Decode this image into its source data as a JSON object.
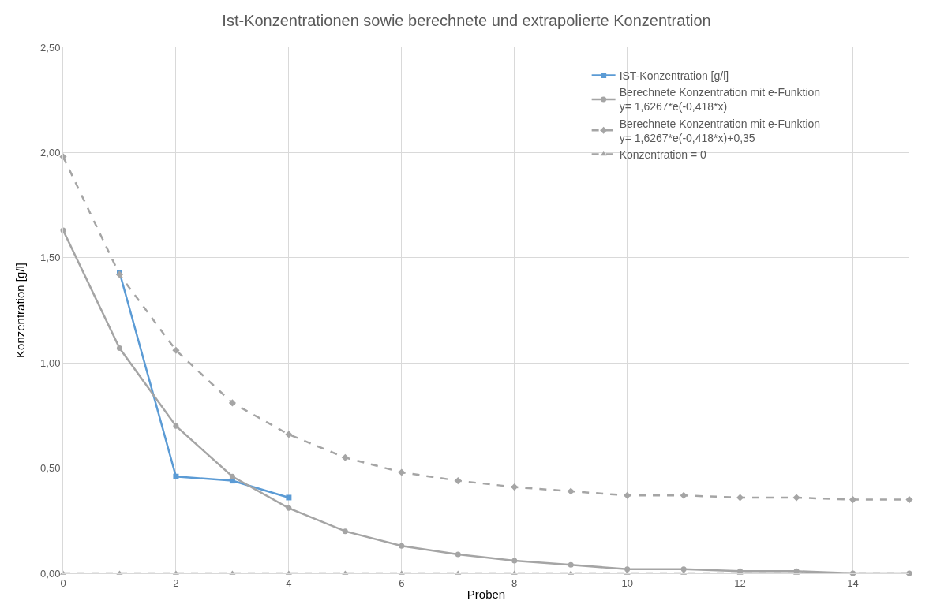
{
  "chart_data": {
    "type": "line",
    "title": "Ist-Konzentrationen sowie berechnete und extrapolierte Konzentration",
    "xlabel": "Proben",
    "ylabel": "Konzentration [g/l]",
    "x": [
      0,
      1,
      2,
      3,
      4,
      5,
      6,
      7,
      8,
      9,
      10,
      11,
      12,
      13,
      14,
      15
    ],
    "series": [
      {
        "name": "IST-Konzentration [g/l]",
        "color": "#5b9bd5",
        "marker": "square",
        "line_style": "solid",
        "x": [
          1,
          2,
          3,
          4
        ],
        "values": [
          1.43,
          0.46,
          0.44,
          0.36
        ]
      },
      {
        "name": "Berechnete Konzentration mit e-Funktion\ny= 1,6267*e(-0,418*x)",
        "color": "#a5a5a5",
        "marker": "circle",
        "line_style": "solid",
        "values": [
          1.63,
          1.07,
          0.7,
          0.46,
          0.31,
          0.2,
          0.13,
          0.09,
          0.06,
          0.04,
          0.02,
          0.02,
          0.01,
          0.01,
          0.0,
          0.0
        ]
      },
      {
        "name": "Berechnete Konzentration mit e-Funktion\ny= 1,6267*e(-0,418*x)+0,35",
        "color": "#a5a5a5",
        "marker": "diamond",
        "line_style": "dashed",
        "values": [
          1.98,
          1.42,
          1.06,
          0.81,
          0.66,
          0.55,
          0.48,
          0.44,
          0.41,
          0.39,
          0.37,
          0.37,
          0.36,
          0.36,
          0.35,
          0.35
        ]
      },
      {
        "name": "Konzentration = 0",
        "color": "#a5a5a5",
        "marker": "triangle",
        "line_style": "dashed",
        "values": [
          0,
          0,
          0,
          0,
          0,
          0,
          0,
          0,
          0,
          0,
          0,
          0,
          0,
          0,
          0,
          0
        ]
      }
    ],
    "xlim": [
      0,
      15
    ],
    "xticks": [
      0,
      2,
      4,
      6,
      8,
      10,
      12,
      14
    ],
    "ylim": [
      0,
      2.5
    ],
    "yticks": [
      {
        "value": 0,
        "label": "0,00"
      },
      {
        "value": 0.5,
        "label": "0,50"
      },
      {
        "value": 1,
        "label": "1,00"
      },
      {
        "value": 1.5,
        "label": "1,50"
      },
      {
        "value": 2,
        "label": "2,00"
      },
      {
        "value": 2.5,
        "label": "2,50"
      }
    ],
    "grid": true,
    "legend": "top right"
  }
}
